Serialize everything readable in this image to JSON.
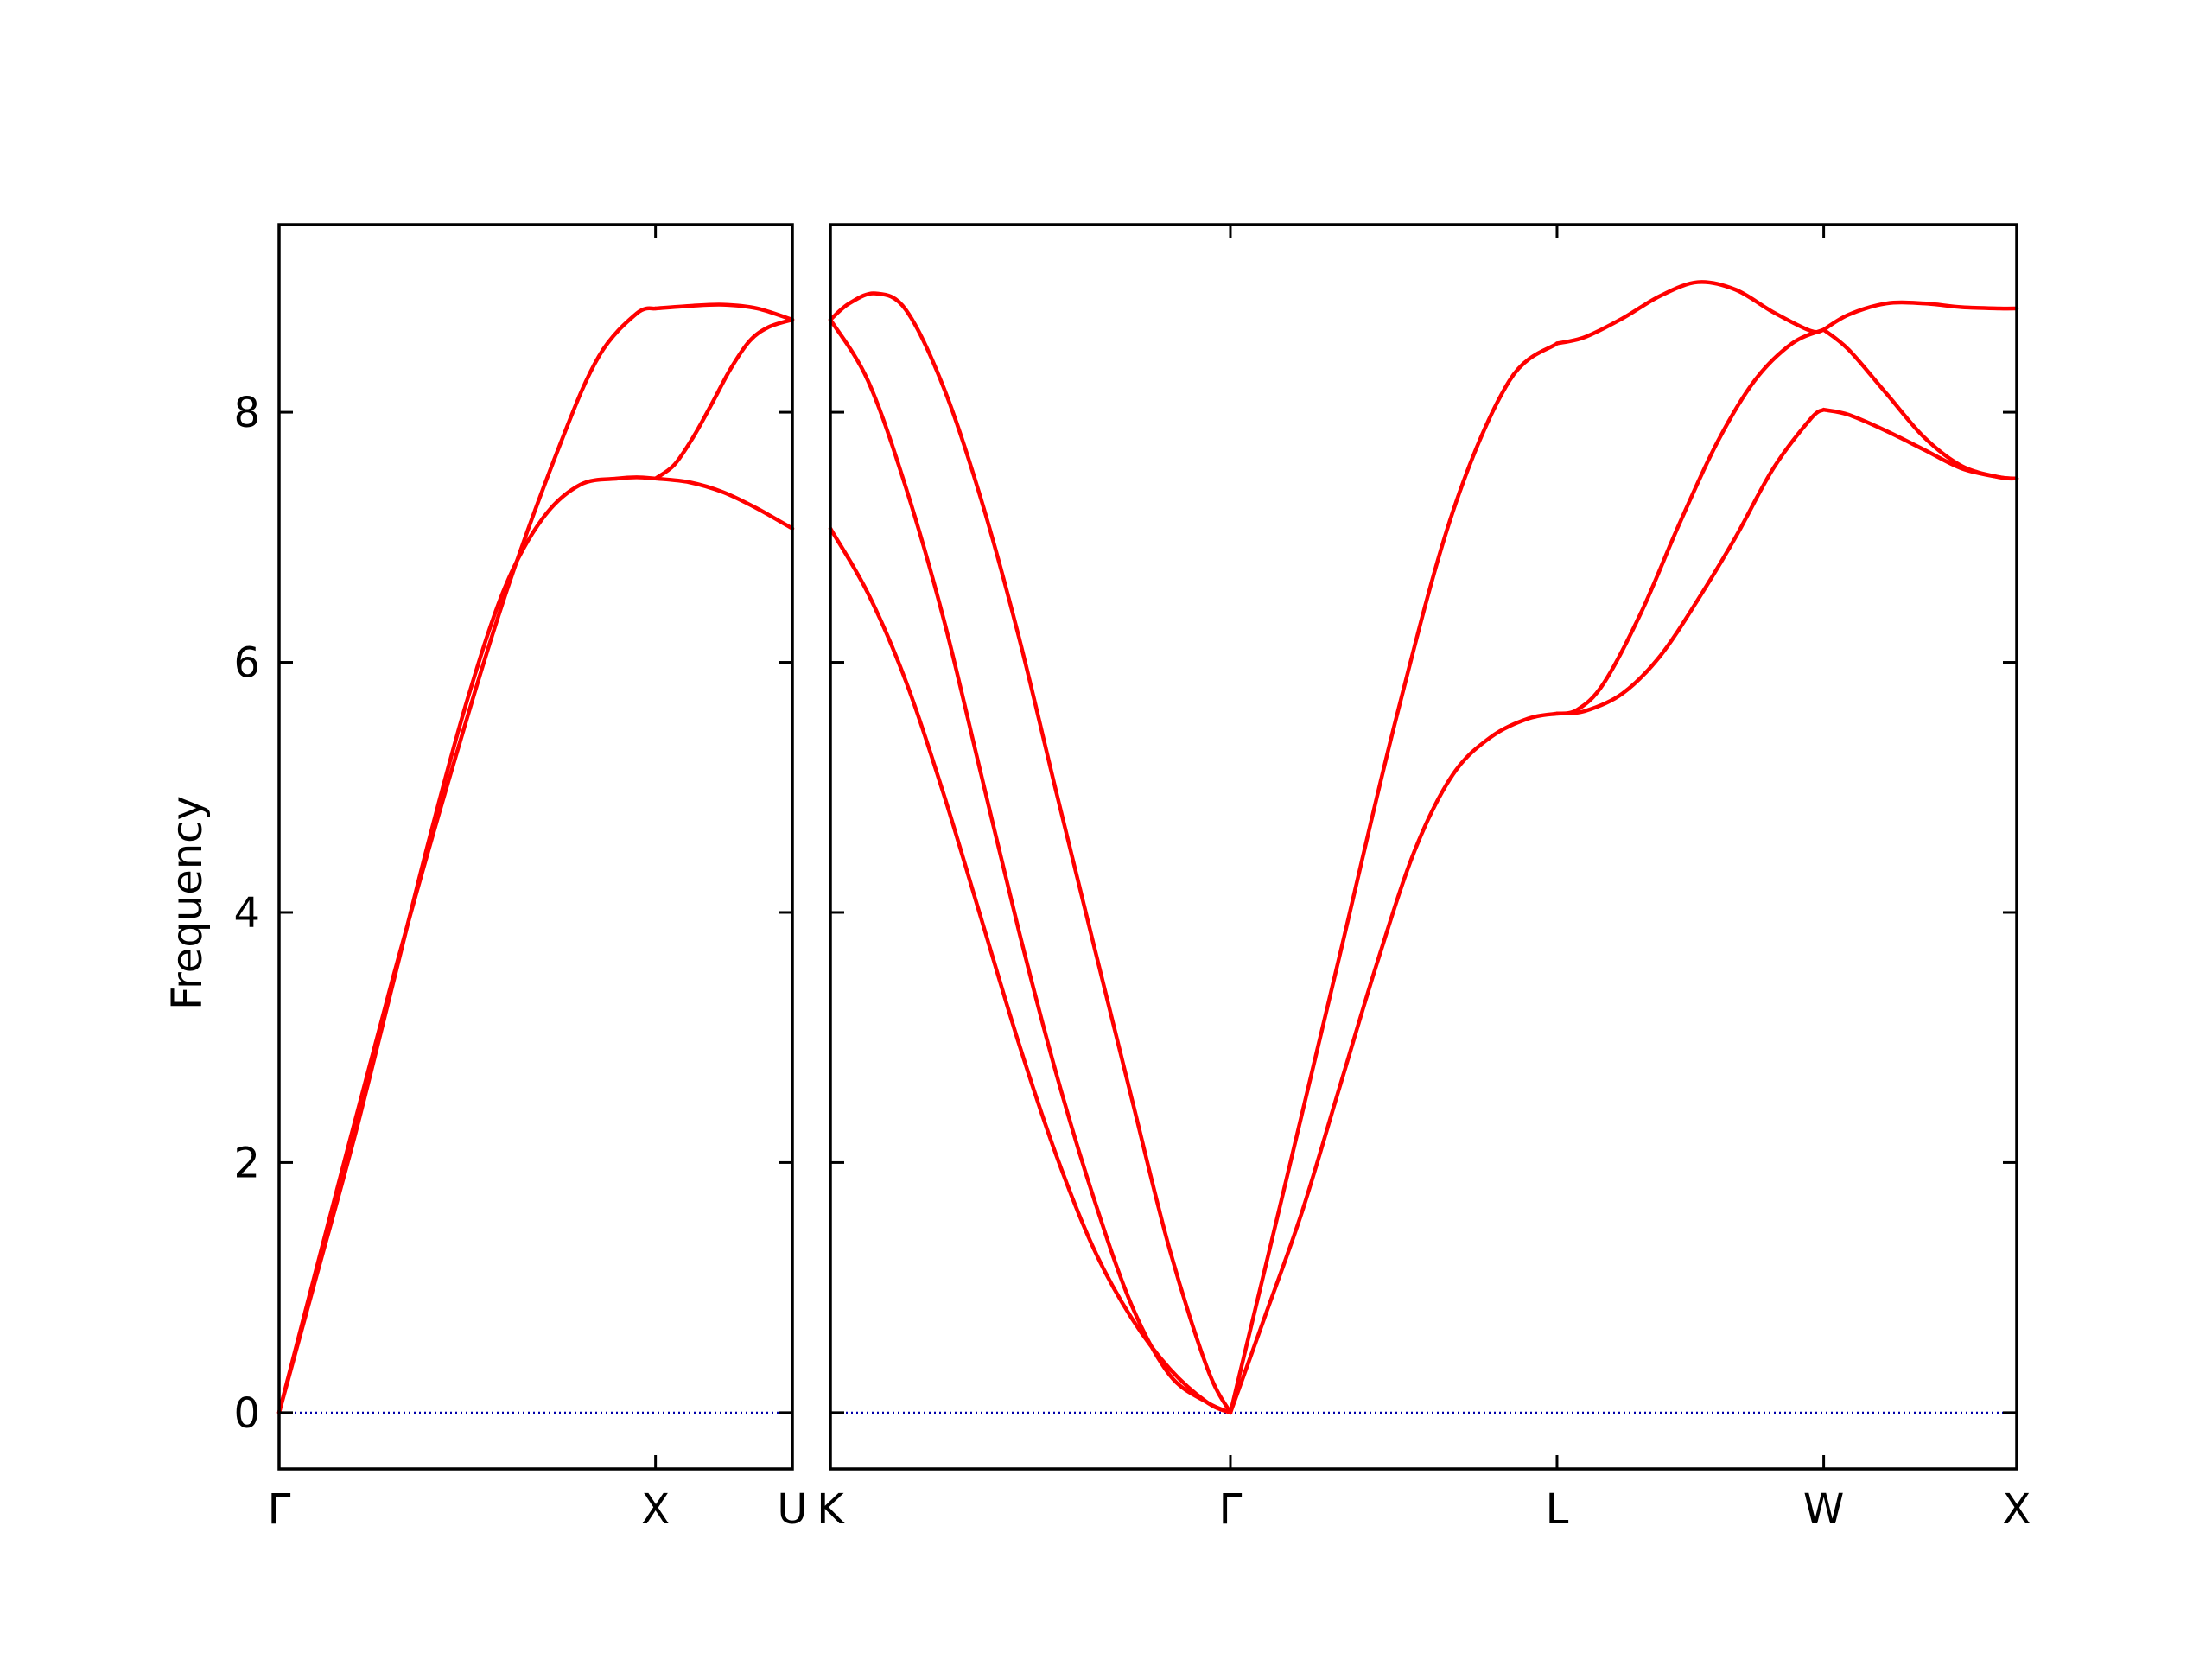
{
  "chart_data": {
    "type": "line",
    "ylabel": "Frequency",
    "ylim": [
      -0.45,
      9.5
    ],
    "yticks": [
      0,
      2,
      4,
      6,
      8
    ],
    "ytick_labels": [
      "0",
      "2",
      "4",
      "6",
      "8"
    ],
    "line_color": "#ff0000",
    "zero_line_color": "#0000aa",
    "panels": [
      {
        "xlim": [
          0,
          1.3635
        ],
        "tick_positions": [
          0,
          1.0,
          1.3635
        ],
        "tick_labels": [
          "Γ",
          "X",
          "U"
        ],
        "series": [
          {
            "x": [
              0,
              0.15,
              0.3,
              0.45,
              0.6,
              0.75,
              0.85,
              0.95,
              1.0
            ],
            "y": [
              0,
              1.74,
              3.45,
              5.05,
              6.53,
              7.77,
              8.45,
              8.79,
              8.83
            ]
          },
          {
            "x": [
              1.0,
              1.09,
              1.18,
              1.27,
              1.3635
            ],
            "y": [
              8.83,
              8.85,
              8.86,
              8.83,
              8.74
            ]
          },
          {
            "x": [
              0,
              0.05,
              0.1,
              0.2,
              0.3,
              0.4,
              0.5,
              0.6,
              0.7,
              0.8,
              0.9,
              0.95,
              1.0
            ],
            "y": [
              0,
              0.55,
              1.1,
              2.2,
              3.4,
              4.6,
              5.7,
              6.6,
              7.15,
              7.42,
              7.47,
              7.48,
              7.47
            ]
          },
          {
            "x": [
              1.0,
              1.05,
              1.1,
              1.15,
              1.2,
              1.25,
              1.3,
              1.3635
            ],
            "y": [
              7.47,
              7.58,
              7.8,
              8.07,
              8.35,
              8.57,
              8.68,
              8.74
            ]
          },
          {
            "x": [
              1.0,
              1.09,
              1.18,
              1.27,
              1.3635
            ],
            "y": [
              7.47,
              7.44,
              7.36,
              7.23,
              7.07
            ]
          }
        ]
      },
      {
        "xlim": [
          0,
          3.1456
        ],
        "tick_positions": [
          0,
          1.0607,
          1.9267,
          2.6338,
          3.1456
        ],
        "tick_labels": [
          "K",
          "Γ",
          "L",
          "W",
          "X"
        ],
        "series": [
          {
            "x": [
              0,
              0.05,
              0.12,
              0.2,
              0.3,
              0.4,
              0.5,
              0.6,
              0.7,
              0.8,
              0.9,
              1.0,
              1.0607
            ],
            "y": [
              8.74,
              8.87,
              8.95,
              8.82,
              8.2,
              7.3,
              6.2,
              4.95,
              3.72,
              2.5,
              1.3,
              0.35,
              0
            ]
          },
          {
            "x": [
              0,
              0.1,
              0.2,
              0.3,
              0.4,
              0.5,
              0.6,
              0.7,
              0.8,
              0.9,
              1.0,
              1.0607
            ],
            "y": [
              8.74,
              8.25,
              7.4,
              6.35,
              5.1,
              3.85,
              2.7,
              1.7,
              0.85,
              0.3,
              0.08,
              0
            ]
          },
          {
            "x": [
              0,
              0.1,
              0.2,
              0.3,
              0.4,
              0.5,
              0.6,
              0.7,
              0.8,
              0.9,
              1.0,
              1.0607
            ],
            "y": [
              7.07,
              6.55,
              5.85,
              4.95,
              3.95,
              2.95,
              2.05,
              1.3,
              0.75,
              0.35,
              0.08,
              0
            ]
          },
          {
            "x": [
              1.0607,
              1.2,
              1.35,
              1.5,
              1.65,
              1.8,
              1.9267
            ],
            "y": [
              0,
              1.75,
              3.65,
              5.55,
              7.2,
              8.25,
              8.55
            ]
          },
          {
            "x": [
              1.0607,
              1.15,
              1.25,
              1.35,
              1.45,
              1.55,
              1.65,
              1.75,
              1.85,
              1.9267
            ],
            "y": [
              0,
              0.75,
              1.6,
              2.6,
              3.6,
              4.5,
              5.1,
              5.4,
              5.55,
              5.59
            ]
          },
          {
            "x": [
              1.9267,
              2.0,
              2.1,
              2.2,
              2.3,
              2.4,
              2.5,
              2.6,
              2.6338
            ],
            "y": [
              8.55,
              8.6,
              8.75,
              8.93,
              9.04,
              8.98,
              8.8,
              8.65,
              8.66
            ]
          },
          {
            "x": [
              1.9267,
              1.98,
              2.05,
              2.15,
              2.25,
              2.35,
              2.45,
              2.55,
              2.6338
            ],
            "y": [
              5.59,
              5.62,
              5.83,
              6.4,
              7.1,
              7.75,
              8.25,
              8.55,
              8.66
            ]
          },
          {
            "x": [
              1.9267,
              2.0,
              2.1,
              2.2,
              2.3,
              2.4,
              2.5,
              2.6,
              2.6338
            ],
            "y": [
              5.59,
              5.61,
              5.75,
              6.05,
              6.5,
              7.0,
              7.55,
              7.95,
              8.02
            ]
          },
          {
            "x": [
              2.6338,
              2.7,
              2.8,
              2.9,
              3.0,
              3.1,
              3.1456
            ],
            "y": [
              8.66,
              8.78,
              8.87,
              8.87,
              8.84,
              8.83,
              8.83
            ]
          },
          {
            "x": [
              2.6338,
              2.7,
              2.8,
              2.9,
              3.0,
              3.1,
              3.1456
            ],
            "y": [
              8.66,
              8.5,
              8.15,
              7.8,
              7.57,
              7.48,
              7.47
            ]
          },
          {
            "x": [
              2.6338,
              2.7,
              2.8,
              2.9,
              3.0,
              3.1,
              3.1456
            ],
            "y": [
              8.02,
              7.98,
              7.85,
              7.7,
              7.55,
              7.48,
              7.47
            ]
          }
        ]
      }
    ]
  }
}
